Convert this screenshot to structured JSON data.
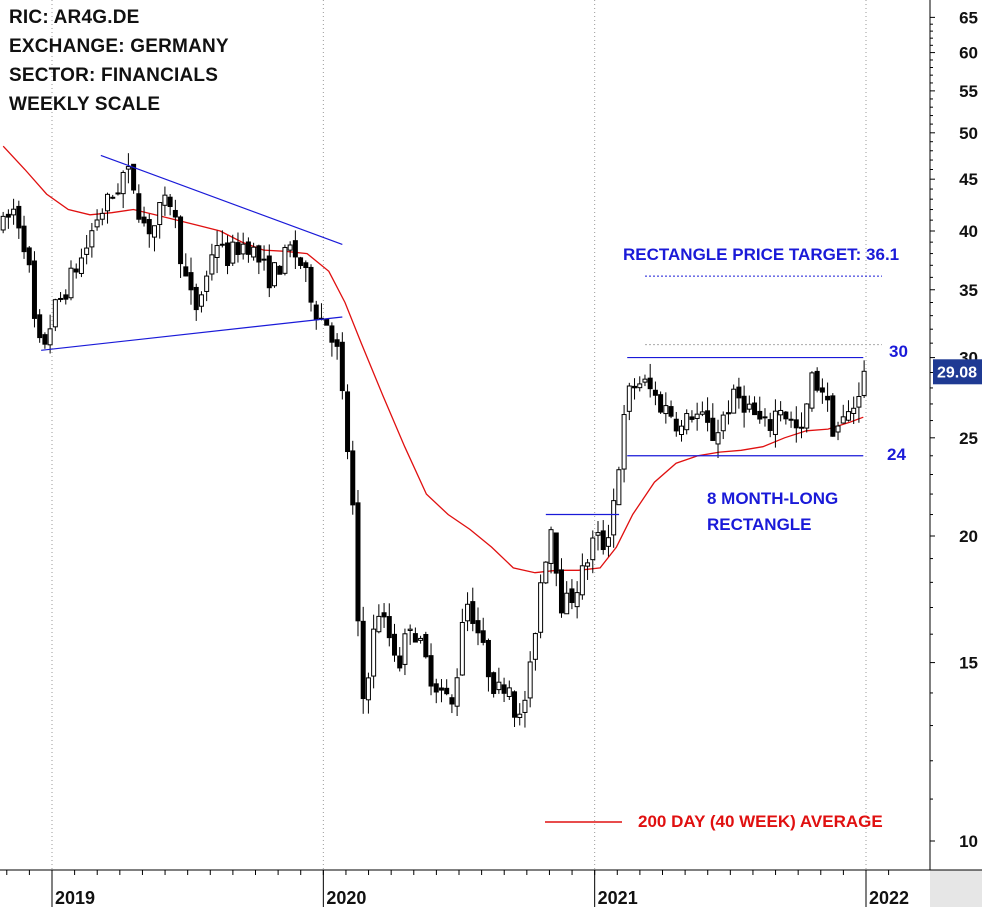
{
  "header": {
    "ric": "RIC: AR4G.DE",
    "exchange": "EXCHANGE: GERMANY",
    "sector": "SECTOR: FINANCIALS",
    "scale": "WEEKLY SCALE"
  },
  "annotations": {
    "price_target": "RECTANGLE PRICE TARGET: 36.1",
    "upper_boundary": "30",
    "lower_boundary": "24",
    "pattern_line1": "8 MONTH-LONG",
    "pattern_line2": "RECTANGLE",
    "ma_legend": "200 DAY (40 WEEK) AVERAGE",
    "last_price": "29.08"
  },
  "colors": {
    "trendline": "#1a1ad8",
    "moving_average": "#e01010",
    "candle": "#000000",
    "last_price_badge": "#1f3a93"
  },
  "chart_data": {
    "type": "candlestick",
    "title": "",
    "y_scale": "log",
    "ylim": [
      10,
      65
    ],
    "y_ticks": [
      10,
      15,
      20,
      25,
      30,
      35,
      40,
      45,
      50,
      55,
      60,
      65
    ],
    "x_tick_labels": [
      "2019",
      "2020",
      "2021",
      "2022"
    ],
    "x_ticks": [
      2019.0,
      2020.0,
      2021.0,
      2022.0
    ],
    "xlim": [
      2018.82,
      2022.12
    ],
    "price_points": [
      [
        2018.82,
        40.5
      ],
      [
        2018.86,
        42.0
      ],
      [
        2018.89,
        40.0
      ],
      [
        2018.92,
        36.0
      ],
      [
        2018.94,
        31.5
      ],
      [
        2018.96,
        30.5
      ],
      [
        2018.98,
        31.5
      ],
      [
        2019.01,
        33.5
      ],
      [
        2019.05,
        35.0
      ],
      [
        2019.08,
        36.5
      ],
      [
        2019.12,
        38.0
      ],
      [
        2019.16,
        41.0
      ],
      [
        2019.2,
        42.5
      ],
      [
        2019.24,
        44.0
      ],
      [
        2019.27,
        46.0
      ],
      [
        2019.3,
        44.5
      ],
      [
        2019.33,
        41.0
      ],
      [
        2019.37,
        40.0
      ],
      [
        2019.4,
        42.0
      ],
      [
        2019.44,
        43.0
      ],
      [
        2019.47,
        38.5
      ],
      [
        2019.5,
        35.0
      ],
      [
        2019.53,
        33.5
      ],
      [
        2019.57,
        36.0
      ],
      [
        2019.6,
        39.5
      ],
      [
        2019.64,
        37.5
      ],
      [
        2019.68,
        38.5
      ],
      [
        2019.72,
        39.0
      ],
      [
        2019.76,
        37.5
      ],
      [
        2019.8,
        36.0
      ],
      [
        2019.84,
        37.0
      ],
      [
        2019.88,
        38.5
      ],
      [
        2019.92,
        37.0
      ],
      [
        2019.95,
        35.0
      ],
      [
        2019.98,
        33.0
      ],
      [
        2020.02,
        32.5
      ],
      [
        2020.05,
        30.5
      ],
      [
        2020.08,
        26.0
      ],
      [
        2020.11,
        21.0
      ],
      [
        2020.14,
        13.5
      ],
      [
        2020.17,
        15.0
      ],
      [
        2020.2,
        17.0
      ],
      [
        2020.24,
        16.0
      ],
      [
        2020.28,
        15.0
      ],
      [
        2020.32,
        16.5
      ],
      [
        2020.36,
        15.5
      ],
      [
        2020.4,
        14.5
      ],
      [
        2020.44,
        14.0
      ],
      [
        2020.48,
        13.5
      ],
      [
        2020.52,
        17.5
      ],
      [
        2020.56,
        16.5
      ],
      [
        2020.6,
        15.0
      ],
      [
        2020.64,
        14.0
      ],
      [
        2020.68,
        14.5
      ],
      [
        2020.72,
        13.0
      ],
      [
        2020.76,
        14.5
      ],
      [
        2020.8,
        18.0
      ],
      [
        2020.84,
        20.5
      ],
      [
        2020.88,
        17.0
      ],
      [
        2020.92,
        17.5
      ],
      [
        2020.96,
        18.5
      ],
      [
        2021.0,
        20.0
      ],
      [
        2021.04,
        19.5
      ],
      [
        2021.08,
        22.5
      ],
      [
        2021.12,
        27.5
      ],
      [
        2021.16,
        28.5
      ],
      [
        2021.2,
        28.0
      ],
      [
        2021.24,
        27.0
      ],
      [
        2021.28,
        26.5
      ],
      [
        2021.32,
        25.5
      ],
      [
        2021.36,
        26.5
      ],
      [
        2021.4,
        26.0
      ],
      [
        2021.44,
        25.0
      ],
      [
        2021.48,
        26.5
      ],
      [
        2021.52,
        27.5
      ],
      [
        2021.56,
        27.0
      ],
      [
        2021.6,
        26.0
      ],
      [
        2021.64,
        25.5
      ],
      [
        2021.68,
        27.0
      ],
      [
        2021.72,
        26.0
      ],
      [
        2021.76,
        25.0
      ],
      [
        2021.8,
        28.5
      ],
      [
        2021.84,
        28.0
      ],
      [
        2021.88,
        25.5
      ],
      [
        2021.92,
        26.0
      ],
      [
        2021.96,
        27.0
      ],
      [
        2021.99,
        29.08
      ]
    ],
    "moving_average": [
      [
        2018.82,
        48.5
      ],
      [
        2018.9,
        46.0
      ],
      [
        2018.98,
        43.5
      ],
      [
        2019.06,
        42.0
      ],
      [
        2019.14,
        41.5
      ],
      [
        2019.22,
        41.7
      ],
      [
        2019.3,
        42.0
      ],
      [
        2019.38,
        41.5
      ],
      [
        2019.46,
        41.0
      ],
      [
        2019.54,
        40.5
      ],
      [
        2019.62,
        40.0
      ],
      [
        2019.7,
        39.0
      ],
      [
        2019.78,
        38.3
      ],
      [
        2019.86,
        38.2
      ],
      [
        2019.94,
        38.0
      ],
      [
        2020.02,
        36.5
      ],
      [
        2020.08,
        34.0
      ],
      [
        2020.14,
        31.0
      ],
      [
        2020.22,
        27.5
      ],
      [
        2020.3,
        24.5
      ],
      [
        2020.38,
        22.0
      ],
      [
        2020.46,
        21.0
      ],
      [
        2020.54,
        20.3
      ],
      [
        2020.62,
        19.5
      ],
      [
        2020.7,
        18.6
      ],
      [
        2020.78,
        18.4
      ],
      [
        2020.86,
        18.5
      ],
      [
        2020.94,
        18.5
      ],
      [
        2021.02,
        18.6
      ],
      [
        2021.08,
        19.5
      ],
      [
        2021.14,
        21.0
      ],
      [
        2021.22,
        22.6
      ],
      [
        2021.3,
        23.6
      ],
      [
        2021.38,
        24.0
      ],
      [
        2021.46,
        24.2
      ],
      [
        2021.54,
        24.3
      ],
      [
        2021.62,
        24.5
      ],
      [
        2021.7,
        25.0
      ],
      [
        2021.78,
        25.4
      ],
      [
        2021.86,
        25.5
      ],
      [
        2021.94,
        25.9
      ],
      [
        2021.99,
        26.2
      ]
    ],
    "trendlines": [
      {
        "from": [
          2018.96,
          30.5
        ],
        "to": [
          2020.07,
          32.9
        ]
      },
      {
        "from": [
          2019.18,
          47.5
        ],
        "to": [
          2020.07,
          38.8
        ]
      },
      {
        "from": [
          2021.12,
          30.0
        ],
        "to": [
          2021.99,
          30.0
        ]
      },
      {
        "from": [
          2021.12,
          24.0
        ],
        "to": [
          2021.99,
          24.0
        ]
      },
      {
        "from": [
          2020.82,
          21.0
        ],
        "to": [
          2021.09,
          21.0
        ]
      }
    ],
    "price_target_level": 36.1,
    "rectangle_bounds": [
      24,
      30
    ]
  }
}
